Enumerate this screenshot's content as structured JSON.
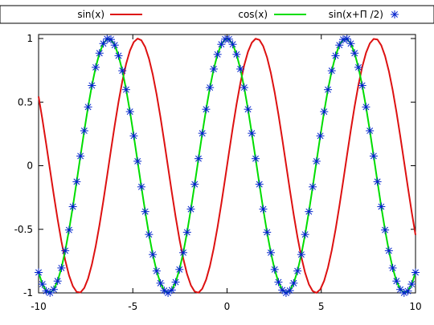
{
  "chart_data": {
    "type": "line",
    "title": "",
    "xlabel": "",
    "ylabel": "",
    "xlim": [
      -10,
      10
    ],
    "ylim": [
      -1,
      1
    ],
    "x_ticks": [
      -10,
      -5,
      0,
      5,
      10
    ],
    "x_tick_labels": [
      "-10",
      "-5",
      "0",
      "5",
      "10"
    ],
    "y_ticks": [
      -1,
      -0.5,
      0,
      0.5,
      1
    ],
    "y_tick_labels": [
      "-1",
      "-0.5",
      "0",
      "0.5",
      "1"
    ],
    "grid": false,
    "legend_position": "top",
    "series": [
      {
        "name": "sin(x)",
        "function": "sin(x)",
        "style": "line",
        "color": "#dd1111",
        "samples": 100
      },
      {
        "name": "cos(x)",
        "function": "cos(x)",
        "style": "line",
        "color": "#00dd00",
        "samples": 100
      },
      {
        "name": "sin(x+Π /2)",
        "function": "sin(x+pi/2)",
        "style": "points",
        "marker": "asterisk",
        "color": "#0022cc",
        "samples": 100
      }
    ]
  }
}
